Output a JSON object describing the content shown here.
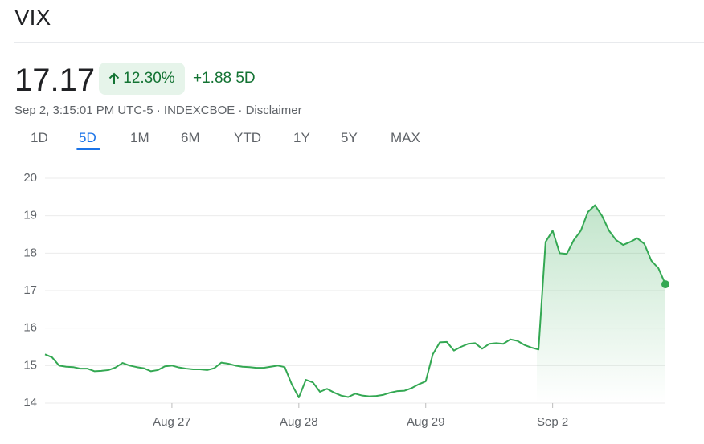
{
  "header": {
    "title": "VIX"
  },
  "quote": {
    "price": "17.17",
    "change_percent": "12.30%",
    "change": "+1.88",
    "period": "5D",
    "timestamp": "Sep 2, 3:15:01 PM UTC-5 · INDEXCBOE · Disclaimer"
  },
  "tabs": [
    "1D",
    "5D",
    "1M",
    "6M",
    "YTD",
    "1Y",
    "5Y",
    "MAX"
  ],
  "active_tab": 1,
  "chart_data": {
    "type": "line",
    "color": "#34a853",
    "grid": true,
    "ylim": [
      14,
      20
    ],
    "yticks": [
      14,
      15,
      16,
      17,
      18,
      19,
      20
    ],
    "categories": [
      null,
      null,
      null,
      null,
      null,
      null,
      null,
      null,
      null,
      null,
      null,
      null,
      null,
      null,
      null,
      null,
      null,
      null,
      "Aug 27",
      null,
      null,
      null,
      null,
      null,
      null,
      null,
      null,
      null,
      null,
      null,
      null,
      null,
      null,
      null,
      null,
      null,
      "Aug 28",
      null,
      null,
      null,
      null,
      null,
      null,
      null,
      null,
      null,
      null,
      null,
      null,
      null,
      null,
      null,
      null,
      null,
      "Aug 29",
      null,
      null,
      null,
      null,
      null,
      null,
      null,
      null,
      null,
      null,
      null,
      null,
      null,
      null,
      null,
      null,
      null,
      "Sep 2",
      null,
      null,
      null,
      null,
      null,
      null,
      null,
      null,
      null,
      null,
      null,
      null,
      null,
      null,
      null,
      null
    ],
    "series": [
      {
        "name": "VIX",
        "color": "#34a853",
        "values": [
          15.3,
          15.22,
          15.0,
          14.97,
          14.96,
          14.92,
          14.92,
          14.85,
          14.86,
          14.88,
          14.95,
          15.07,
          15.0,
          14.96,
          14.93,
          14.85,
          14.88,
          14.98,
          15.0,
          14.95,
          14.92,
          14.9,
          14.9,
          14.88,
          14.93,
          15.08,
          15.05,
          15.0,
          14.97,
          14.96,
          14.94,
          14.94,
          14.97,
          15.0,
          14.96,
          14.5,
          14.15,
          14.62,
          14.55,
          14.3,
          14.38,
          14.28,
          14.2,
          14.16,
          14.25,
          14.2,
          14.18,
          14.19,
          14.22,
          14.28,
          14.32,
          14.33,
          14.4,
          14.5,
          14.58,
          15.3,
          15.62,
          15.63,
          15.4,
          15.5,
          15.58,
          15.6,
          15.45,
          15.58,
          15.6,
          15.58,
          15.7,
          15.66,
          15.55,
          15.48,
          15.43,
          18.3,
          18.6,
          18.0,
          17.98,
          18.35,
          18.6,
          19.1,
          19.28,
          19.0,
          18.6,
          18.35,
          18.22,
          18.3,
          18.4,
          18.25,
          17.8,
          17.6,
          17.17
        ]
      }
    ]
  }
}
